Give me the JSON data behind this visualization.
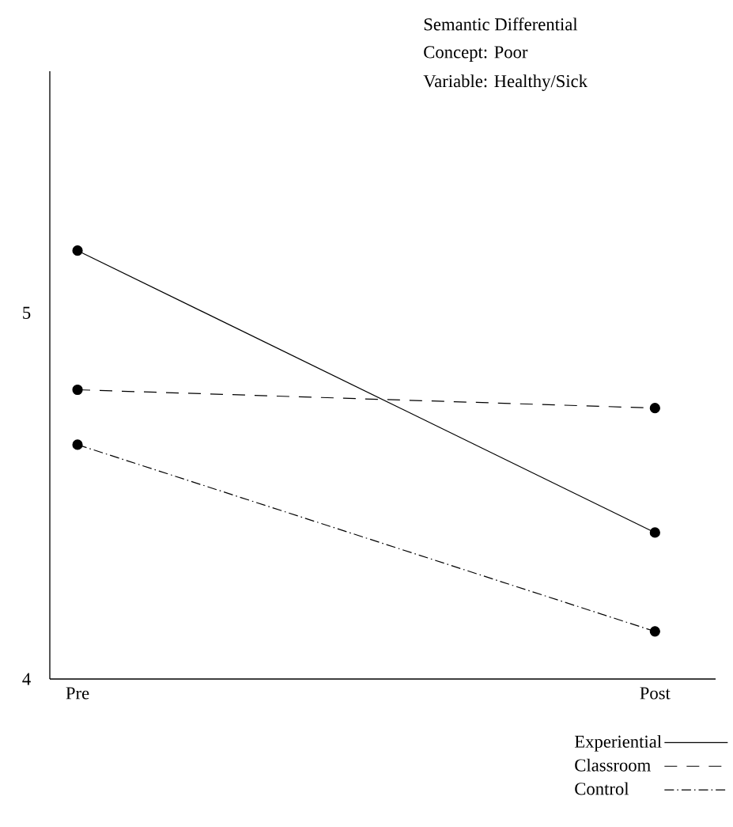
{
  "chart_data": {
    "type": "line",
    "title": "Semantic Differential",
    "annotations": [
      "Concept:  Poor",
      "Variable:  Healthy/Sick"
    ],
    "categories": [
      "Pre",
      "Post"
    ],
    "series": [
      {
        "name": "Experiential",
        "color": "#000000",
        "values": [
          5.17,
          4.4
        ],
        "line_style": "solid"
      },
      {
        "name": "Classroom",
        "color": "#000000",
        "values": [
          4.79,
          4.74
        ],
        "line_style": "dashed"
      },
      {
        "name": "Control",
        "color": "#000000",
        "values": [
          4.64,
          4.13
        ],
        "line_style": "dashdot"
      }
    ],
    "ylim": [
      4,
      5.66
    ],
    "yticks": [
      4,
      5
    ],
    "marker": "circle",
    "legend": "bottom right",
    "grid": false
  }
}
